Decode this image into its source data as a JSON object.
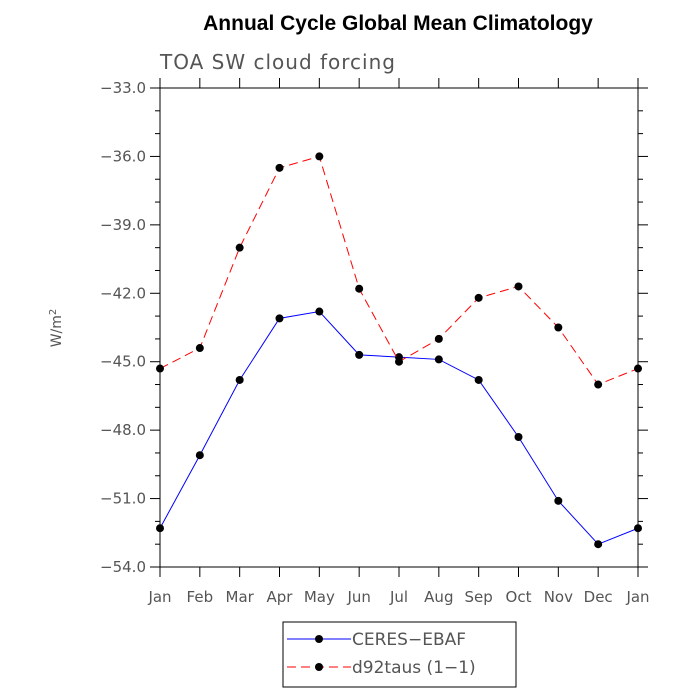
{
  "chart_data": {
    "type": "line",
    "title": "Annual Cycle Global Mean Climatology",
    "subtitle": "TOA SW cloud forcing",
    "ylabel": "W/m",
    "ylabel_superscript": "2",
    "ylim": [
      -54.0,
      -33.0
    ],
    "y_ticks": [
      "-33.0",
      "-36.0",
      "-39.0",
      "-42.0",
      "-45.0",
      "-48.0",
      "-51.0",
      "-54.0"
    ],
    "y_tick_values": [
      -33,
      -36,
      -39,
      -42,
      -45,
      -48,
      -51,
      -54
    ],
    "categories": [
      "Jan",
      "Feb",
      "Mar",
      "Apr",
      "May",
      "Jun",
      "Jul",
      "Aug",
      "Sep",
      "Oct",
      "Nov",
      "Dec",
      "Jan"
    ],
    "series": [
      {
        "name": "CERES-EBAF",
        "color": "#0000ff",
        "dash": "solid",
        "values": [
          -52.3,
          -49.1,
          -45.8,
          -43.1,
          -42.8,
          -44.7,
          -44.8,
          -44.9,
          -45.8,
          -48.3,
          -51.1,
          -53.0,
          -52.3
        ]
      },
      {
        "name": "d92taus (1-1)",
        "color": "#ff0000",
        "dash": "dashed",
        "values": [
          -45.3,
          -44.4,
          -40.0,
          -36.5,
          -36.0,
          -41.8,
          -45.0,
          -44.0,
          -42.2,
          -41.7,
          -43.5,
          -46.0,
          -45.3
        ]
      }
    ],
    "legend_position": "bottom-center",
    "grid": false
  }
}
